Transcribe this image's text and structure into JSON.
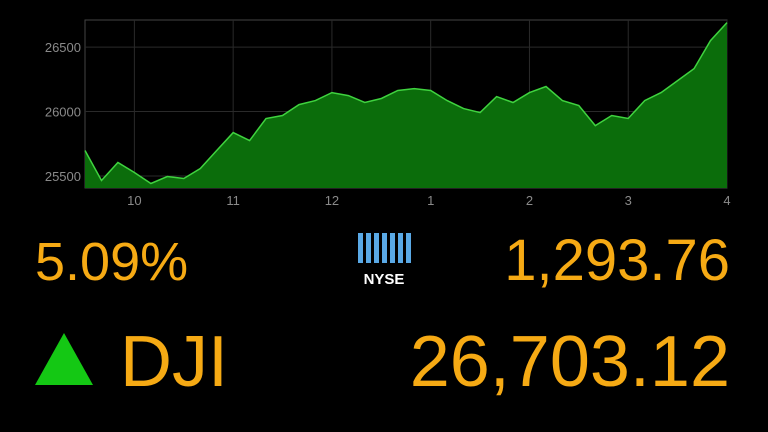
{
  "chart_data": {
    "type": "area",
    "x": [
      9.5,
      9.667,
      9.833,
      10,
      10.167,
      10.333,
      10.5,
      10.667,
      10.833,
      11,
      11.167,
      11.333,
      11.5,
      11.667,
      11.833,
      12,
      12.167,
      12.333,
      12.5,
      12.667,
      12.833,
      13,
      13.167,
      13.333,
      13.5,
      13.667,
      13.833,
      14,
      14.167,
      14.333,
      14.5,
      14.667,
      14.833,
      15,
      15.167,
      15.333,
      15.5,
      15.667,
      15.833,
      16
    ],
    "values": [
      25698,
      25465,
      25605,
      25527,
      25442,
      25496,
      25481,
      25558,
      25698,
      25837,
      25775,
      25946,
      25969,
      26054,
      26085,
      26147,
      26124,
      26070,
      26101,
      26163,
      26178,
      26163,
      26085,
      26023,
      25992,
      26116,
      26070,
      26147,
      26194,
      26085,
      26047,
      25891,
      25969,
      25946,
      26085,
      26147,
      26240,
      26333,
      26550,
      26690
    ],
    "line_color": "#3fd33f",
    "color": "#0b6d0b",
    "xlim": [
      9.5,
      16
    ],
    "xticks": [
      10,
      11,
      12,
      {
        "value": 13,
        "label": "1"
      },
      {
        "value": 14,
        "label": "2"
      },
      {
        "value": 15,
        "label": "3"
      },
      {
        "value": 16,
        "label": "4"
      }
    ],
    "ylim": [
      25407,
      26710
    ],
    "yticks": [
      25500,
      26000,
      26500
    ],
    "grid": true
  },
  "quote": {
    "change": "5.09%",
    "exchange": "NYSE",
    "volume": "1,293.76",
    "symbol": "DJI",
    "price": "26,703.12"
  }
}
